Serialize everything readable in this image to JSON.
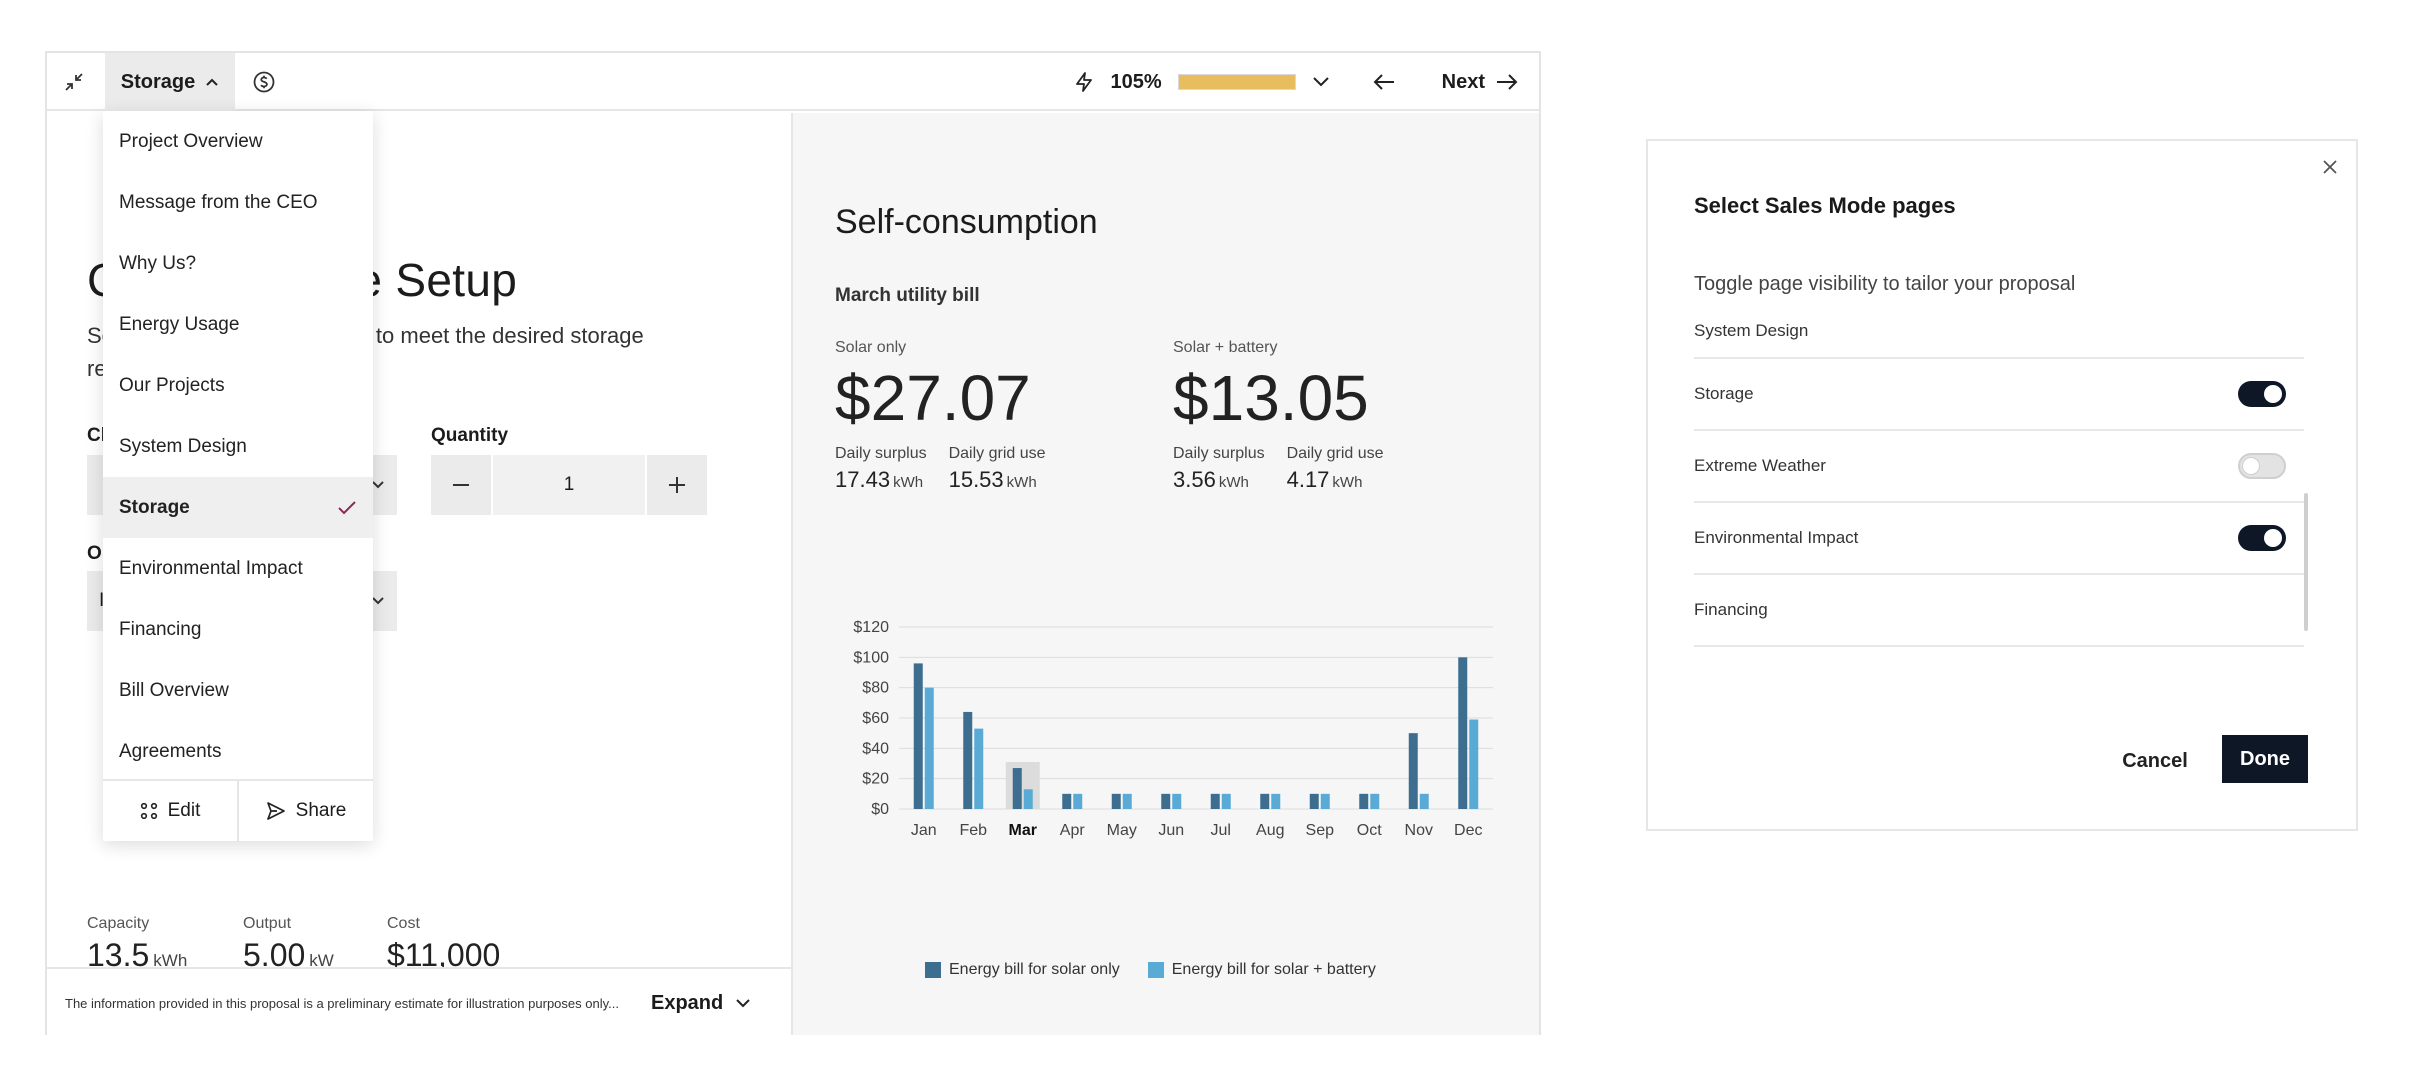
{
  "topbar": {
    "collapse_icon": "collapse-arrows-icon",
    "page_selector_label": "Storage",
    "currency_icon": "dollar-circle-icon",
    "power_icon": "lightning-icon",
    "power_percent": "105%",
    "power_fill_fraction": 1.0,
    "next_label": "Next"
  },
  "left": {
    "title_prefix": "C",
    "title_suffix": "ge Setup",
    "subtitle_lead": "Se",
    "subtitle_suffix": "to meet the desired storage",
    "subtitle_line2": "re",
    "choose_label_partial": "Cl",
    "quantity_label": "Quantity",
    "quantity_value": "1",
    "option_label_partial": "O",
    "option_value_partial": "I",
    "specs": [
      {
        "label": "Capacity",
        "value": "13.5",
        "unit": "kWh"
      },
      {
        "label": "Output",
        "value": "5.00",
        "unit": "kW"
      },
      {
        "label": "Cost",
        "value": "$11,000",
        "unit": ""
      }
    ]
  },
  "footer": {
    "disclaimer": "The information provided in this proposal is a preliminary estimate for illustration purposes only...",
    "expand_label": "Expand"
  },
  "menu": {
    "items": [
      {
        "label": "Project Overview",
        "active": false
      },
      {
        "label": "Message from the CEO",
        "active": false
      },
      {
        "label": "Why Us?",
        "active": false
      },
      {
        "label": "Energy Usage",
        "active": false
      },
      {
        "label": "Our Projects",
        "active": false
      },
      {
        "label": "System Design",
        "active": false
      },
      {
        "label": "Storage",
        "active": true
      },
      {
        "label": "Environmental Impact",
        "active": false
      },
      {
        "label": "Financing",
        "active": false
      },
      {
        "label": "Bill Overview",
        "active": false
      },
      {
        "label": "Agreements",
        "active": false
      }
    ],
    "edit_label": "Edit",
    "share_label": "Share",
    "check_color": "#8b2b55"
  },
  "self_consumption": {
    "title": "Self-consumption",
    "subtitle": "March utility bill",
    "solar_only": {
      "label": "Solar only",
      "amount": "$27.07",
      "surplus_label": "Daily surplus",
      "surplus_value": "17.43",
      "grid_label": "Daily grid use",
      "grid_value": "15.53",
      "unit": "kWh"
    },
    "solar_battery": {
      "label": "Solar + battery",
      "amount": "$13.05",
      "surplus_label": "Daily surplus",
      "surplus_value": "3.56",
      "grid_label": "Daily grid use",
      "grid_value": "4.17",
      "unit": "kWh"
    }
  },
  "chart_data": {
    "type": "bar",
    "categories": [
      "Jan",
      "Feb",
      "Mar",
      "Apr",
      "May",
      "Jun",
      "Jul",
      "Aug",
      "Sep",
      "Oct",
      "Nov",
      "Dec"
    ],
    "highlight_category": "Mar",
    "series": [
      {
        "name": "Energy bill for solar only",
        "color": "#3d6e8f",
        "values": [
          96,
          64,
          27,
          10,
          10,
          10,
          10,
          10,
          10,
          10,
          50,
          100
        ]
      },
      {
        "name": "Energy bill for solar + battery",
        "color": "#5aaad6",
        "values": [
          80,
          53,
          13,
          10,
          10,
          10,
          10,
          10,
          10,
          10,
          10,
          59
        ]
      }
    ],
    "yticks": [
      "$0",
      "$20",
      "$40",
      "$60",
      "$80",
      "$100",
      "$120"
    ],
    "ylim": [
      0,
      120
    ],
    "grid": true,
    "legend_position": "bottom"
  },
  "dialog": {
    "title": "Select Sales Mode pages",
    "subtitle": "Toggle page visibility to tailor your proposal",
    "rows": [
      {
        "label": "System Design",
        "toggle": null,
        "partial": true
      },
      {
        "label": "Storage",
        "toggle": true,
        "partial": false
      },
      {
        "label": "Extreme Weather",
        "toggle": false,
        "partial": false
      },
      {
        "label": "Environmental Impact",
        "toggle": true,
        "partial": false
      },
      {
        "label": "Financing",
        "toggle": null,
        "partial": false
      }
    ],
    "cancel_label": "Cancel",
    "done_label": "Done"
  }
}
